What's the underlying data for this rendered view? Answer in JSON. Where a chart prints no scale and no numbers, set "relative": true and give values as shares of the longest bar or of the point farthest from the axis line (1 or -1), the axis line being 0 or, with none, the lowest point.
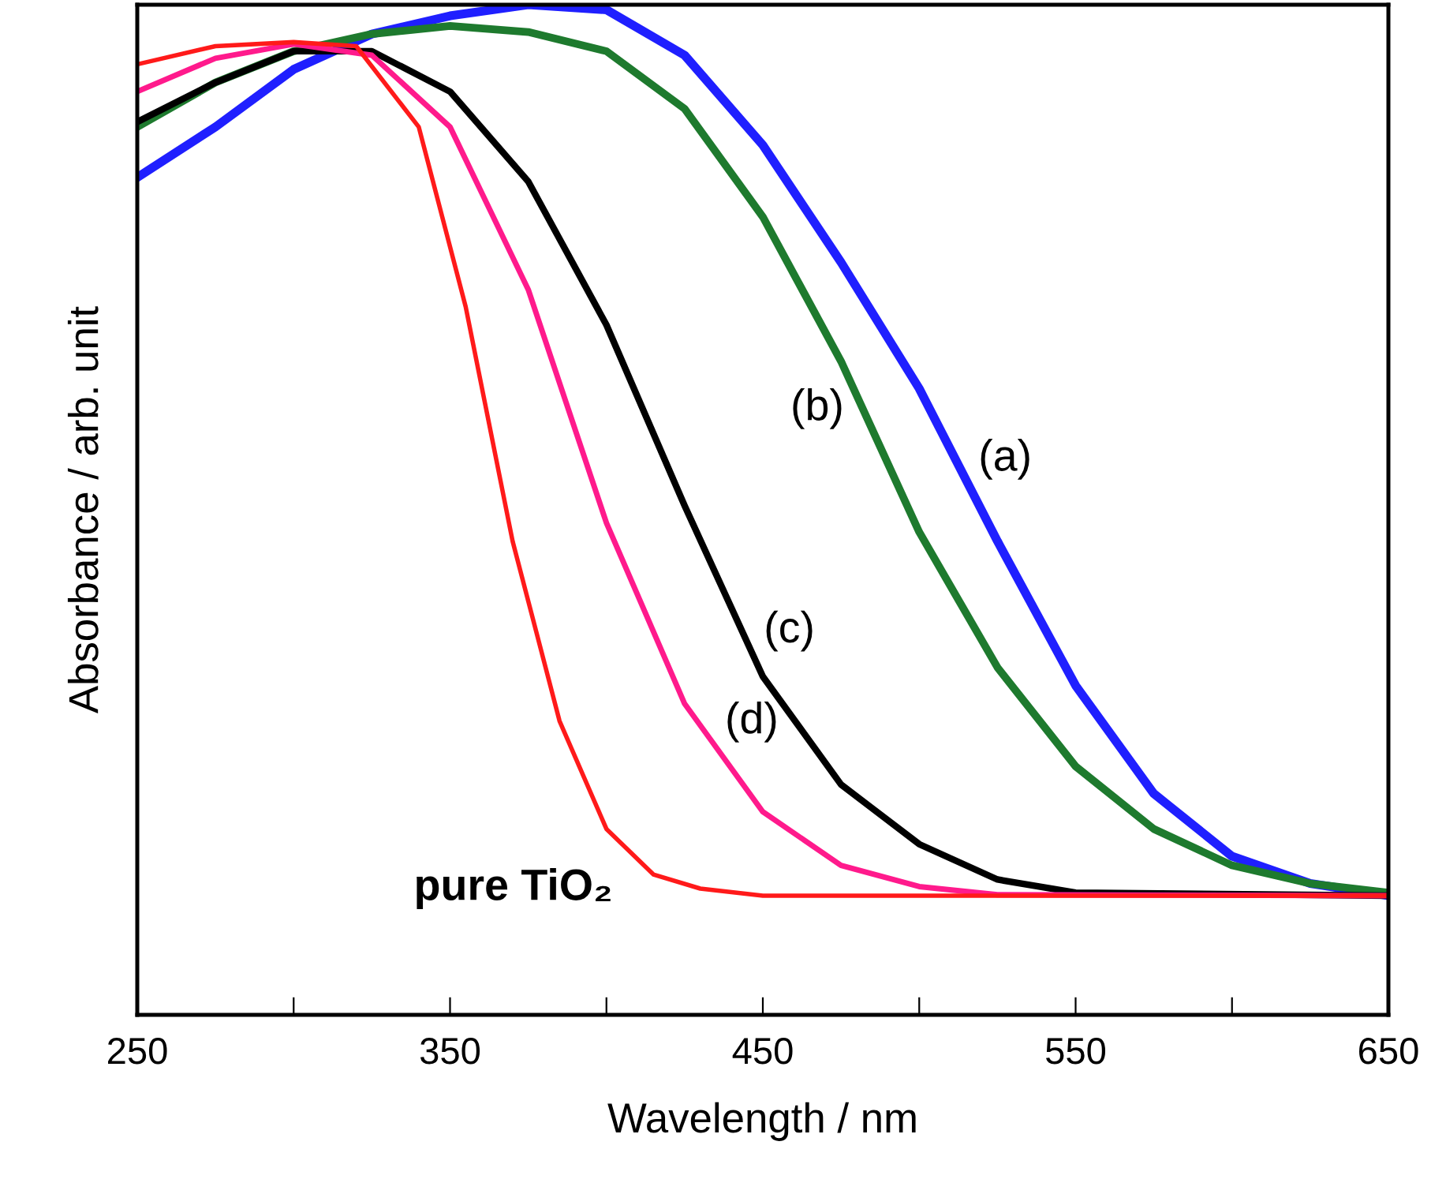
{
  "chart_data": {
    "type": "line",
    "relative": true,
    "xlabel": "Wavelength / nm",
    "ylabel": "Absorbance / arb. unit",
    "xlim": [
      250,
      650
    ],
    "xticks": [
      250,
      {
        "value": 300,
        "label": null
      },
      350,
      {
        "value": 400,
        "label": null
      },
      450,
      {
        "value": 500,
        "label": null
      },
      550,
      {
        "value": 600,
        "label": null
      },
      650
    ],
    "grid": false,
    "legend": false,
    "marker": "none",
    "line_style": "solid",
    "series": [
      {
        "name": "(a)",
        "color": "#1f1fff",
        "x": [
          250,
          275,
          300,
          325,
          350,
          375,
          400,
          425,
          450,
          475,
          500,
          525,
          550,
          575,
          600,
          625,
          650
        ],
        "values": [
          0.829,
          0.879,
          0.936,
          0.971,
          0.989,
          1.0,
          0.995,
          0.95,
          0.861,
          0.745,
          0.62,
          0.469,
          0.326,
          0.219,
          0.157,
          0.13,
          0.118
        ]
      },
      {
        "name": "(b)",
        "color": "#1e7a2e",
        "x": [
          250,
          275,
          300,
          325,
          350,
          375,
          400,
          425,
          450,
          475,
          500,
          525,
          550,
          575,
          600,
          625,
          650
        ],
        "values": [
          0.879,
          0.923,
          0.954,
          0.971,
          0.979,
          0.973,
          0.954,
          0.897,
          0.79,
          0.647,
          0.478,
          0.344,
          0.246,
          0.184,
          0.148,
          0.13,
          0.121
        ]
      },
      {
        "name": "(c)",
        "color": "#000000",
        "x": [
          250,
          275,
          300,
          325,
          350,
          375,
          400,
          425,
          450,
          475,
          500,
          525,
          550,
          650
        ],
        "values": [
          0.884,
          0.923,
          0.954,
          0.954,
          0.914,
          0.825,
          0.683,
          0.504,
          0.335,
          0.228,
          0.169,
          0.134,
          0.121,
          0.118
        ]
      },
      {
        "name": "(d)",
        "color": "#ff1a8c",
        "x": [
          250,
          275,
          300,
          325,
          350,
          375,
          400,
          425,
          450,
          475,
          500,
          525,
          650
        ],
        "values": [
          0.914,
          0.947,
          0.961,
          0.95,
          0.879,
          0.718,
          0.487,
          0.308,
          0.201,
          0.148,
          0.127,
          0.119,
          0.118
        ]
      },
      {
        "name": "pure TiO₂",
        "color": "#ff1a1a",
        "x": [
          250,
          275,
          300,
          320,
          340,
          355,
          370,
          385,
          400,
          415,
          430,
          450,
          650
        ],
        "values": [
          0.941,
          0.959,
          0.963,
          0.959,
          0.879,
          0.701,
          0.469,
          0.291,
          0.184,
          0.139,
          0.125,
          0.118,
          0.118
        ]
      }
    ]
  }
}
